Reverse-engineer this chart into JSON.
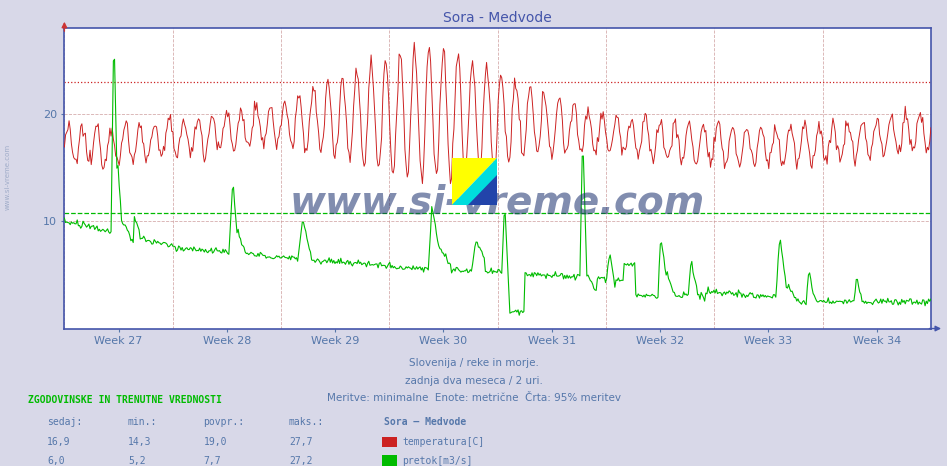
{
  "title": "Sora - Medvode",
  "title_color": "#4455aa",
  "bg_color": "#d8d8e8",
  "plot_bg_color": "#ffffff",
  "x_label_color": "#5577aa",
  "week_labels": [
    "Week 27",
    "Week 28",
    "Week 29",
    "Week 30",
    "Week 31",
    "Week 32",
    "Week 33",
    "Week 34"
  ],
  "y_ticks_left": [
    10,
    20
  ],
  "y_max": 28,
  "y_min": 0,
  "temp_color": "#cc2222",
  "flow_color": "#00bb00",
  "hline_temp_95": 23.0,
  "hline_flow_95": 10.8,
  "watermark": "www.si-vreme.com",
  "footer_line1": "Slovenija / reke in morje.",
  "footer_line2": "zadnja dva meseca / 2 uri.",
  "footer_line3": "Meritve: minimalne  Enote: metrične  Črta: 95% meritev",
  "table_header": "ZGODOVINSKE IN TRENUTNE VREDNOSTI",
  "table_cols": [
    "sedaj:",
    "min.:",
    "povpr.:",
    "maks.:",
    "Sora – Medvode"
  ],
  "table_row1": [
    "16,9",
    "14,3",
    "19,0",
    "27,7",
    "temperatura[C]"
  ],
  "table_row2": [
    "6,0",
    "5,2",
    "7,7",
    "27,2",
    "pretok[m3/s]"
  ],
  "sidebar_text": "www.si-vreme.com",
  "n_points": 744
}
